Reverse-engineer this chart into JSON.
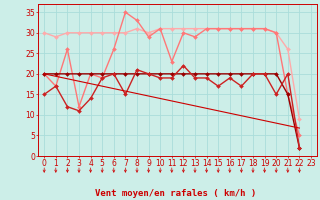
{
  "title": "Vent moyen/en rafales ( km/h )",
  "background_color": "#cceee8",
  "grid_color": "#aaddda",
  "x_labels": [
    "0",
    "1",
    "2",
    "3",
    "4",
    "5",
    "6",
    "7",
    "8",
    "9",
    "10",
    "11",
    "12",
    "13",
    "14",
    "15",
    "16",
    "17",
    "18",
    "19",
    "20",
    "21",
    "22",
    "23"
  ],
  "ylim": [
    0,
    37
  ],
  "yticks": [
    0,
    5,
    10,
    15,
    20,
    25,
    30,
    35
  ],
  "series": [
    {
      "name": "rafales_top_light",
      "color": "#ffaaaa",
      "linewidth": 1.0,
      "marker": "D",
      "markersize": 2.0,
      "y": [
        30,
        29,
        30,
        30,
        30,
        30,
        30,
        30,
        31,
        30,
        31,
        31,
        31,
        31,
        31,
        31,
        31,
        31,
        31,
        31,
        30,
        26,
        9,
        null
      ]
    },
    {
      "name": "rafales_pink",
      "color": "#ff7777",
      "linewidth": 1.0,
      "marker": "D",
      "markersize": 2.0,
      "y": [
        20,
        17,
        26,
        12,
        20,
        19,
        26,
        35,
        33,
        29,
        31,
        23,
        30,
        29,
        31,
        31,
        31,
        31,
        31,
        31,
        30,
        15,
        5,
        null
      ]
    },
    {
      "name": "vent_moyen_flat",
      "color": "#990000",
      "linewidth": 1.0,
      "marker": "D",
      "markersize": 2.0,
      "y": [
        20,
        20,
        20,
        20,
        20,
        20,
        20,
        20,
        20,
        20,
        20,
        20,
        20,
        20,
        20,
        20,
        20,
        20,
        20,
        20,
        20,
        15,
        2,
        null
      ]
    },
    {
      "name": "vent_moyen_variable",
      "color": "#cc2222",
      "linewidth": 1.0,
      "marker": "D",
      "markersize": 2.0,
      "y": [
        15,
        17,
        12,
        11,
        14,
        19,
        20,
        15,
        21,
        20,
        19,
        19,
        22,
        19,
        19,
        17,
        19,
        17,
        20,
        20,
        15,
        20,
        2,
        null
      ]
    },
    {
      "name": "trend_line",
      "color": "#cc0000",
      "linewidth": 0.8,
      "marker": null,
      "markersize": 0,
      "y": [
        20,
        19.4,
        18.8,
        18.2,
        17.6,
        17.0,
        16.4,
        15.8,
        15.2,
        14.6,
        14.0,
        13.4,
        12.8,
        12.2,
        11.6,
        11.0,
        10.4,
        9.8,
        9.2,
        8.6,
        8.0,
        7.4,
        6.8,
        null
      ]
    }
  ],
  "arrow_color": "#cc0000",
  "xlabel_fontsize": 6.5,
  "tick_fontsize": 5.5,
  "title_fontsize": 7
}
